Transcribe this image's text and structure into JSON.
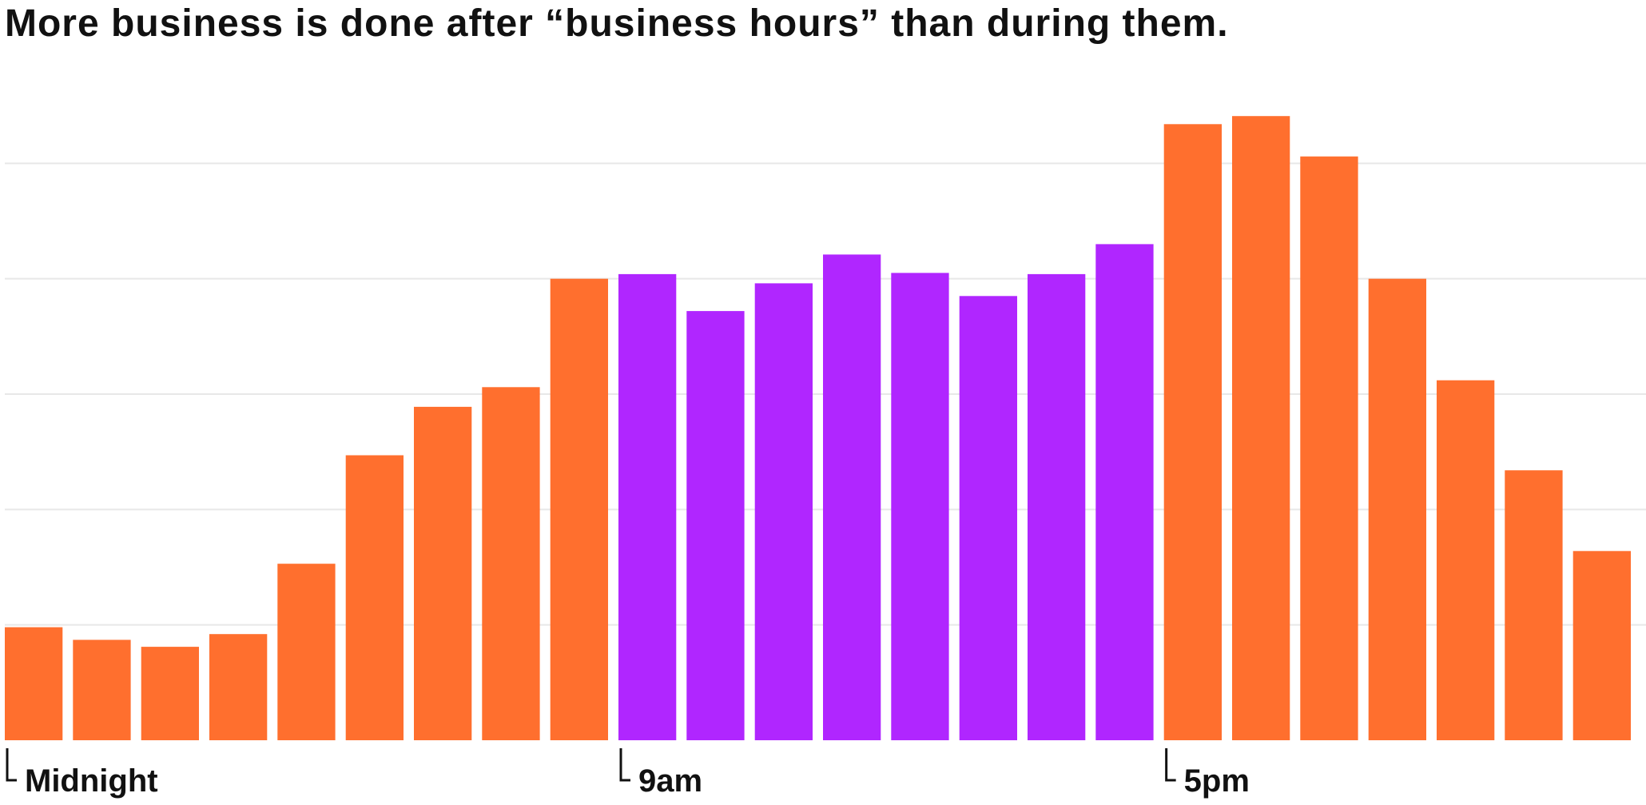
{
  "chart_data": {
    "type": "bar",
    "title": "More business is done after “business hours” than during them.",
    "categories": [
      "0",
      "1",
      "2",
      "3",
      "4",
      "5",
      "6",
      "7",
      "8",
      "9",
      "10",
      "11",
      "12",
      "13",
      "14",
      "15",
      "16",
      "17",
      "18",
      "19",
      "20",
      "21",
      "22",
      "23"
    ],
    "values": [
      9.8,
      8.7,
      8.1,
      9.2,
      15.3,
      24.7,
      28.9,
      30.6,
      40.0,
      40.4,
      37.2,
      39.6,
      42.1,
      40.5,
      38.5,
      40.4,
      43.0,
      53.4,
      54.1,
      50.6,
      40.0,
      31.2,
      23.4,
      16.4
    ],
    "highlight_categories": [
      "9",
      "10",
      "11",
      "12",
      "13",
      "14",
      "15",
      "16"
    ],
    "ylim": [
      0,
      60
    ],
    "yticks": [
      0,
      10,
      20,
      30,
      40,
      50
    ],
    "grid": true,
    "tick_labels": [
      {
        "category": "0",
        "text": "Midnight"
      },
      {
        "category": "9",
        "text": "9am"
      },
      {
        "category": "17",
        "text": "5pm"
      }
    ],
    "colors": {
      "default_bar": "#ff6f2e",
      "highlight_bar": "#b026ff",
      "grid": "#e8e8e8",
      "text": "#111111"
    }
  }
}
